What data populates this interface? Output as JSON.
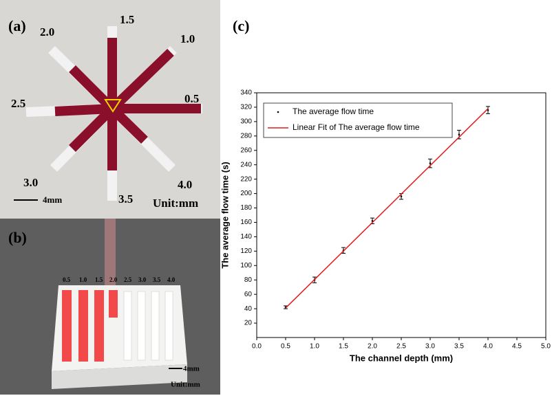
{
  "panel_a": {
    "label": "(a)",
    "depth_labels": [
      "1.5",
      "1.0",
      "0.5",
      "4.0",
      "3.5",
      "3.0",
      "2.5",
      "2.0"
    ],
    "scale_label": "4mm",
    "unit_label": "Unit:mm"
  },
  "panel_b": {
    "label": "(b)",
    "depth_labels": [
      "0.5",
      "1.0",
      "1.5",
      "2.0",
      "2.5",
      "3.0",
      "3.5",
      "4.0"
    ],
    "scale_label": "4mm",
    "unit_label": "Unit:mm"
  },
  "chart_data": {
    "type": "scatter",
    "panel_label": "(c)",
    "x_label": "The channel depth (mm)",
    "y_label": "The average flow time (s)",
    "xlim": [
      0,
      5
    ],
    "ylim": [
      0,
      340
    ],
    "xticks": [
      {
        "value": 0,
        "label": "0.0"
      },
      0.5,
      {
        "value": 1,
        "label": "1.0"
      },
      1.5,
      {
        "value": 2,
        "label": "2.0"
      },
      2.5,
      {
        "value": 3,
        "label": "3.0"
      },
      3.5,
      {
        "value": 4,
        "label": "4.0"
      },
      4.5,
      {
        "value": 5,
        "label": "5.0"
      }
    ],
    "yticks": [
      20,
      40,
      60,
      80,
      100,
      120,
      140,
      160,
      180,
      200,
      220,
      240,
      260,
      280,
      300,
      320,
      340
    ],
    "legend": "upper-left",
    "series": [
      {
        "name": "The average flow time",
        "color": "#000000",
        "kind": "errorbar",
        "x": [
          0.5,
          1,
          1.5,
          2,
          2.5,
          3,
          3.5,
          4
        ],
        "values": [
          42,
          80,
          121,
          162,
          196,
          242,
          282,
          316
        ],
        "errors": [
          2,
          4,
          4,
          4,
          4,
          6,
          6,
          5
        ]
      },
      {
        "name": "Linear Fit of The average flow time",
        "color": "#e41a1c",
        "kind": "line",
        "x": [
          0.5,
          4
        ],
        "values": [
          41,
          318
        ]
      }
    ]
  }
}
